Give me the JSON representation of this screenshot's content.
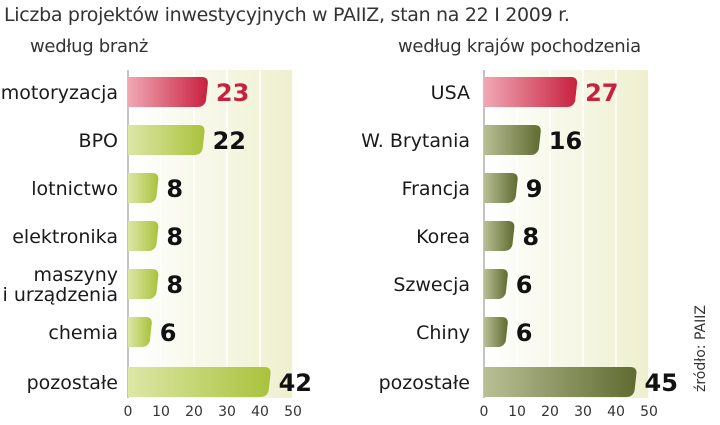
{
  "title": "Liczba projektów inwestycyjnych w PAIIZ, stan na 22 I 2009 r.",
  "source": "źródło: PAIIZ",
  "colors": {
    "highlight": "#c8203f",
    "left_bar": "#a9c23c",
    "right_bar": "#5f6b30",
    "panel_bg": "#eef0cf",
    "value_text": "#111111"
  },
  "chart_data": [
    {
      "type": "bar",
      "orientation": "horizontal",
      "subtitle": "według branż",
      "categories": [
        "motoryzacja",
        "BPO",
        "lotnictwo",
        "elektronika",
        "maszyny i urządzenia",
        "chemia",
        "pozostałe"
      ],
      "category_lines": [
        [
          "motoryzacja"
        ],
        [
          "BPO"
        ],
        [
          "lotnictwo"
        ],
        [
          "elektronika"
        ],
        [
          "maszyny",
          "i urządzenia"
        ],
        [
          "chemia"
        ],
        [
          "pozostałe"
        ]
      ],
      "values": [
        23,
        22,
        8,
        8,
        8,
        6,
        42
      ],
      "highlight_index": 0,
      "xlim": [
        0,
        50
      ],
      "xticks": [
        0,
        10,
        20,
        30,
        40,
        50
      ],
      "grid": true
    },
    {
      "type": "bar",
      "orientation": "horizontal",
      "subtitle": "według krajów pochodzenia",
      "categories": [
        "USA",
        "W. Brytania",
        "Francja",
        "Korea",
        "Szwecja",
        "Chiny",
        "pozostałe"
      ],
      "category_lines": [
        [
          "USA"
        ],
        [
          "W. Brytania"
        ],
        [
          "Francja"
        ],
        [
          "Korea"
        ],
        [
          "Szwecja"
        ],
        [
          "Chiny"
        ],
        [
          "pozostałe"
        ]
      ],
      "values": [
        27,
        16,
        9,
        8,
        6,
        6,
        45
      ],
      "highlight_index": 0,
      "xlim": [
        0,
        50
      ],
      "xticks": [
        0,
        10,
        20,
        30,
        40,
        50
      ],
      "grid": true
    }
  ]
}
